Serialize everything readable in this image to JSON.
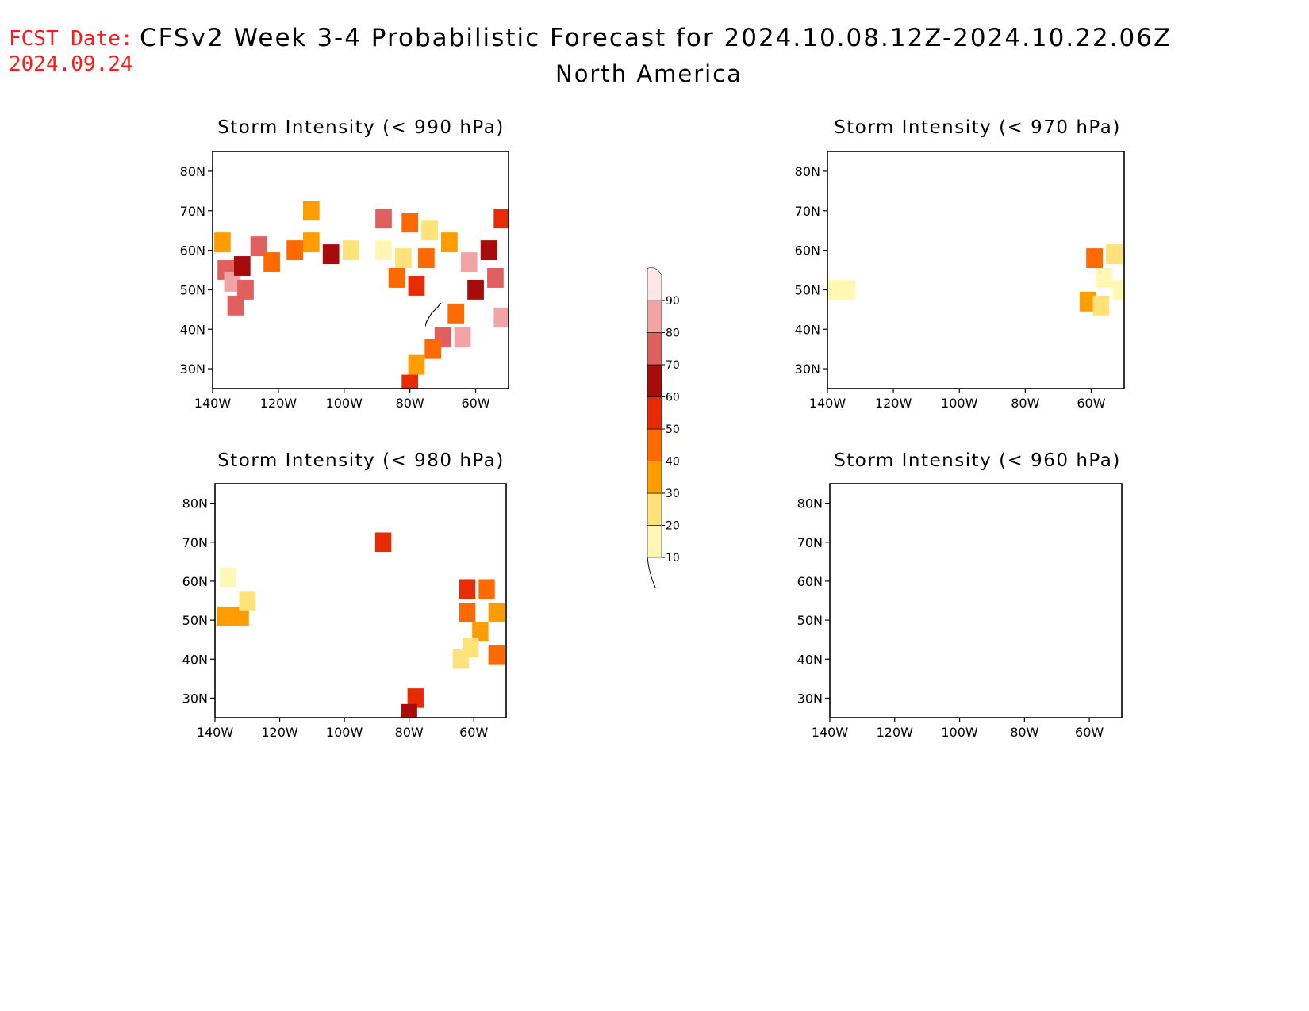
{
  "header": {
    "fcst_label": "FCST Date:",
    "fcst_date": "2024.09.24",
    "title": "CFSv2 Week 3-4 Probabilistic Forecast for 2024.10.08.12Z-2024.10.22.06Z",
    "subtitle": "North America"
  },
  "colors": {
    "forecast_date": "#ff1a1a",
    "text": "#000000"
  },
  "legend": {
    "labels": [
      "10",
      "20",
      "30",
      "40",
      "50",
      "60",
      "70",
      "80",
      "90"
    ],
    "colors": [
      "#fff7b3",
      "#ffe27a",
      "#ff9d00",
      "#ff6a00",
      "#e62b05",
      "#a80b0b",
      "#e06060",
      "#f2a3a6",
      "#ffe6e6"
    ]
  },
  "chart_data": [
    {
      "type": "heatmap",
      "title": "Storm Intensity (< 990 hPa)",
      "x_ticks": [
        "140W",
        "120W",
        "100W",
        "80W",
        "60W"
      ],
      "y_ticks": [
        "30N",
        "40N",
        "50N",
        "60N",
        "70N",
        "80N"
      ],
      "xlim": [
        -140,
        -50
      ],
      "ylim": [
        25,
        85
      ],
      "units": "%",
      "cells": [
        {
          "lon": -137,
          "lat": 62,
          "value": 30
        },
        {
          "lon": -136,
          "lat": 55,
          "value": 70
        },
        {
          "lon": -134,
          "lat": 52,
          "value": 80
        },
        {
          "lon": -131,
          "lat": 56,
          "value": 60
        },
        {
          "lon": -130,
          "lat": 50,
          "value": 75
        },
        {
          "lon": -133,
          "lat": 46,
          "value": 70
        },
        {
          "lon": -126,
          "lat": 61,
          "value": 70
        },
        {
          "lon": -122,
          "lat": 57,
          "value": 40
        },
        {
          "lon": -115,
          "lat": 60,
          "value": 40
        },
        {
          "lon": -110,
          "lat": 62,
          "value": 30
        },
        {
          "lon": -104,
          "lat": 59,
          "value": 60
        },
        {
          "lon": -98,
          "lat": 60,
          "value": 20
        },
        {
          "lon": -110,
          "lat": 70,
          "value": 30
        },
        {
          "lon": -88,
          "lat": 68,
          "value": 75
        },
        {
          "lon": -80,
          "lat": 67,
          "value": 40
        },
        {
          "lon": -74,
          "lat": 65,
          "value": 20
        },
        {
          "lon": -88,
          "lat": 60,
          "value": 10
        },
        {
          "lon": -82,
          "lat": 58,
          "value": 20
        },
        {
          "lon": -75,
          "lat": 58,
          "value": 40
        },
        {
          "lon": -84,
          "lat": 53,
          "value": 40
        },
        {
          "lon": -78,
          "lat": 51,
          "value": 50
        },
        {
          "lon": -68,
          "lat": 62,
          "value": 30
        },
        {
          "lon": -62,
          "lat": 57,
          "value": 80
        },
        {
          "lon": -56,
          "lat": 60,
          "value": 60
        },
        {
          "lon": -54,
          "lat": 53,
          "value": 70
        },
        {
          "lon": -60,
          "lat": 50,
          "value": 60
        },
        {
          "lon": -52,
          "lat": 43,
          "value": 80
        },
        {
          "lon": -52,
          "lat": 68,
          "value": 50
        },
        {
          "lon": -66,
          "lat": 44,
          "value": 40
        },
        {
          "lon": -64,
          "lat": 38,
          "value": 80
        },
        {
          "lon": -70,
          "lat": 38,
          "value": 75
        },
        {
          "lon": -73,
          "lat": 35,
          "value": 40
        },
        {
          "lon": -78,
          "lat": 31,
          "value": 30
        },
        {
          "lon": -80,
          "lat": 26,
          "value": 50
        }
      ]
    },
    {
      "type": "heatmap",
      "title": "Storm Intensity (< 970 hPa)",
      "x_ticks": [
        "140W",
        "120W",
        "100W",
        "80W",
        "60W"
      ],
      "y_ticks": [
        "30N",
        "40N",
        "50N",
        "60N",
        "70N",
        "80N"
      ],
      "xlim": [
        -140,
        -50
      ],
      "ylim": [
        25,
        85
      ],
      "units": "%",
      "cells": [
        {
          "lon": -139,
          "lat": 50,
          "value": 10
        },
        {
          "lon": -134,
          "lat": 50,
          "value": 10
        },
        {
          "lon": -59,
          "lat": 58,
          "value": 40
        },
        {
          "lon": -53,
          "lat": 59,
          "value": 20
        },
        {
          "lon": -56,
          "lat": 53,
          "value": 10
        },
        {
          "lon": -61,
          "lat": 47,
          "value": 30
        },
        {
          "lon": -57,
          "lat": 46,
          "value": 20
        },
        {
          "lon": -51,
          "lat": 50,
          "value": 10
        }
      ]
    },
    {
      "type": "heatmap",
      "title": "Storm Intensity (< 980 hPa)",
      "x_ticks": [
        "140W",
        "120W",
        "100W",
        "80W",
        "60W"
      ],
      "y_ticks": [
        "30N",
        "40N",
        "50N",
        "60N",
        "70N",
        "80N"
      ],
      "xlim": [
        -140,
        -50
      ],
      "ylim": [
        25,
        85
      ],
      "units": "%",
      "cells": [
        {
          "lon": -136,
          "lat": 61,
          "value": 10
        },
        {
          "lon": -137,
          "lat": 51,
          "value": 30
        },
        {
          "lon": -132,
          "lat": 51,
          "value": 30
        },
        {
          "lon": -130,
          "lat": 55,
          "value": 20
        },
        {
          "lon": -88,
          "lat": 70,
          "value": 50
        },
        {
          "lon": -62,
          "lat": 58,
          "value": 50
        },
        {
          "lon": -56,
          "lat": 58,
          "value": 40
        },
        {
          "lon": -62,
          "lat": 52,
          "value": 40
        },
        {
          "lon": -53,
          "lat": 52,
          "value": 30
        },
        {
          "lon": -58,
          "lat": 47,
          "value": 30
        },
        {
          "lon": -61,
          "lat": 43,
          "value": 20
        },
        {
          "lon": -64,
          "lat": 40,
          "value": 20
        },
        {
          "lon": -53,
          "lat": 41,
          "value": 40
        },
        {
          "lon": -78,
          "lat": 30,
          "value": 50
        },
        {
          "lon": -80,
          "lat": 26,
          "value": 60
        }
      ]
    },
    {
      "type": "heatmap",
      "title": "Storm Intensity (< 960 hPa)",
      "x_ticks": [
        "140W",
        "120W",
        "100W",
        "80W",
        "60W"
      ],
      "y_ticks": [
        "30N",
        "40N",
        "50N",
        "60N",
        "70N",
        "80N"
      ],
      "xlim": [
        -140,
        -50
      ],
      "ylim": [
        25,
        85
      ],
      "units": "%",
      "cells": []
    }
  ]
}
